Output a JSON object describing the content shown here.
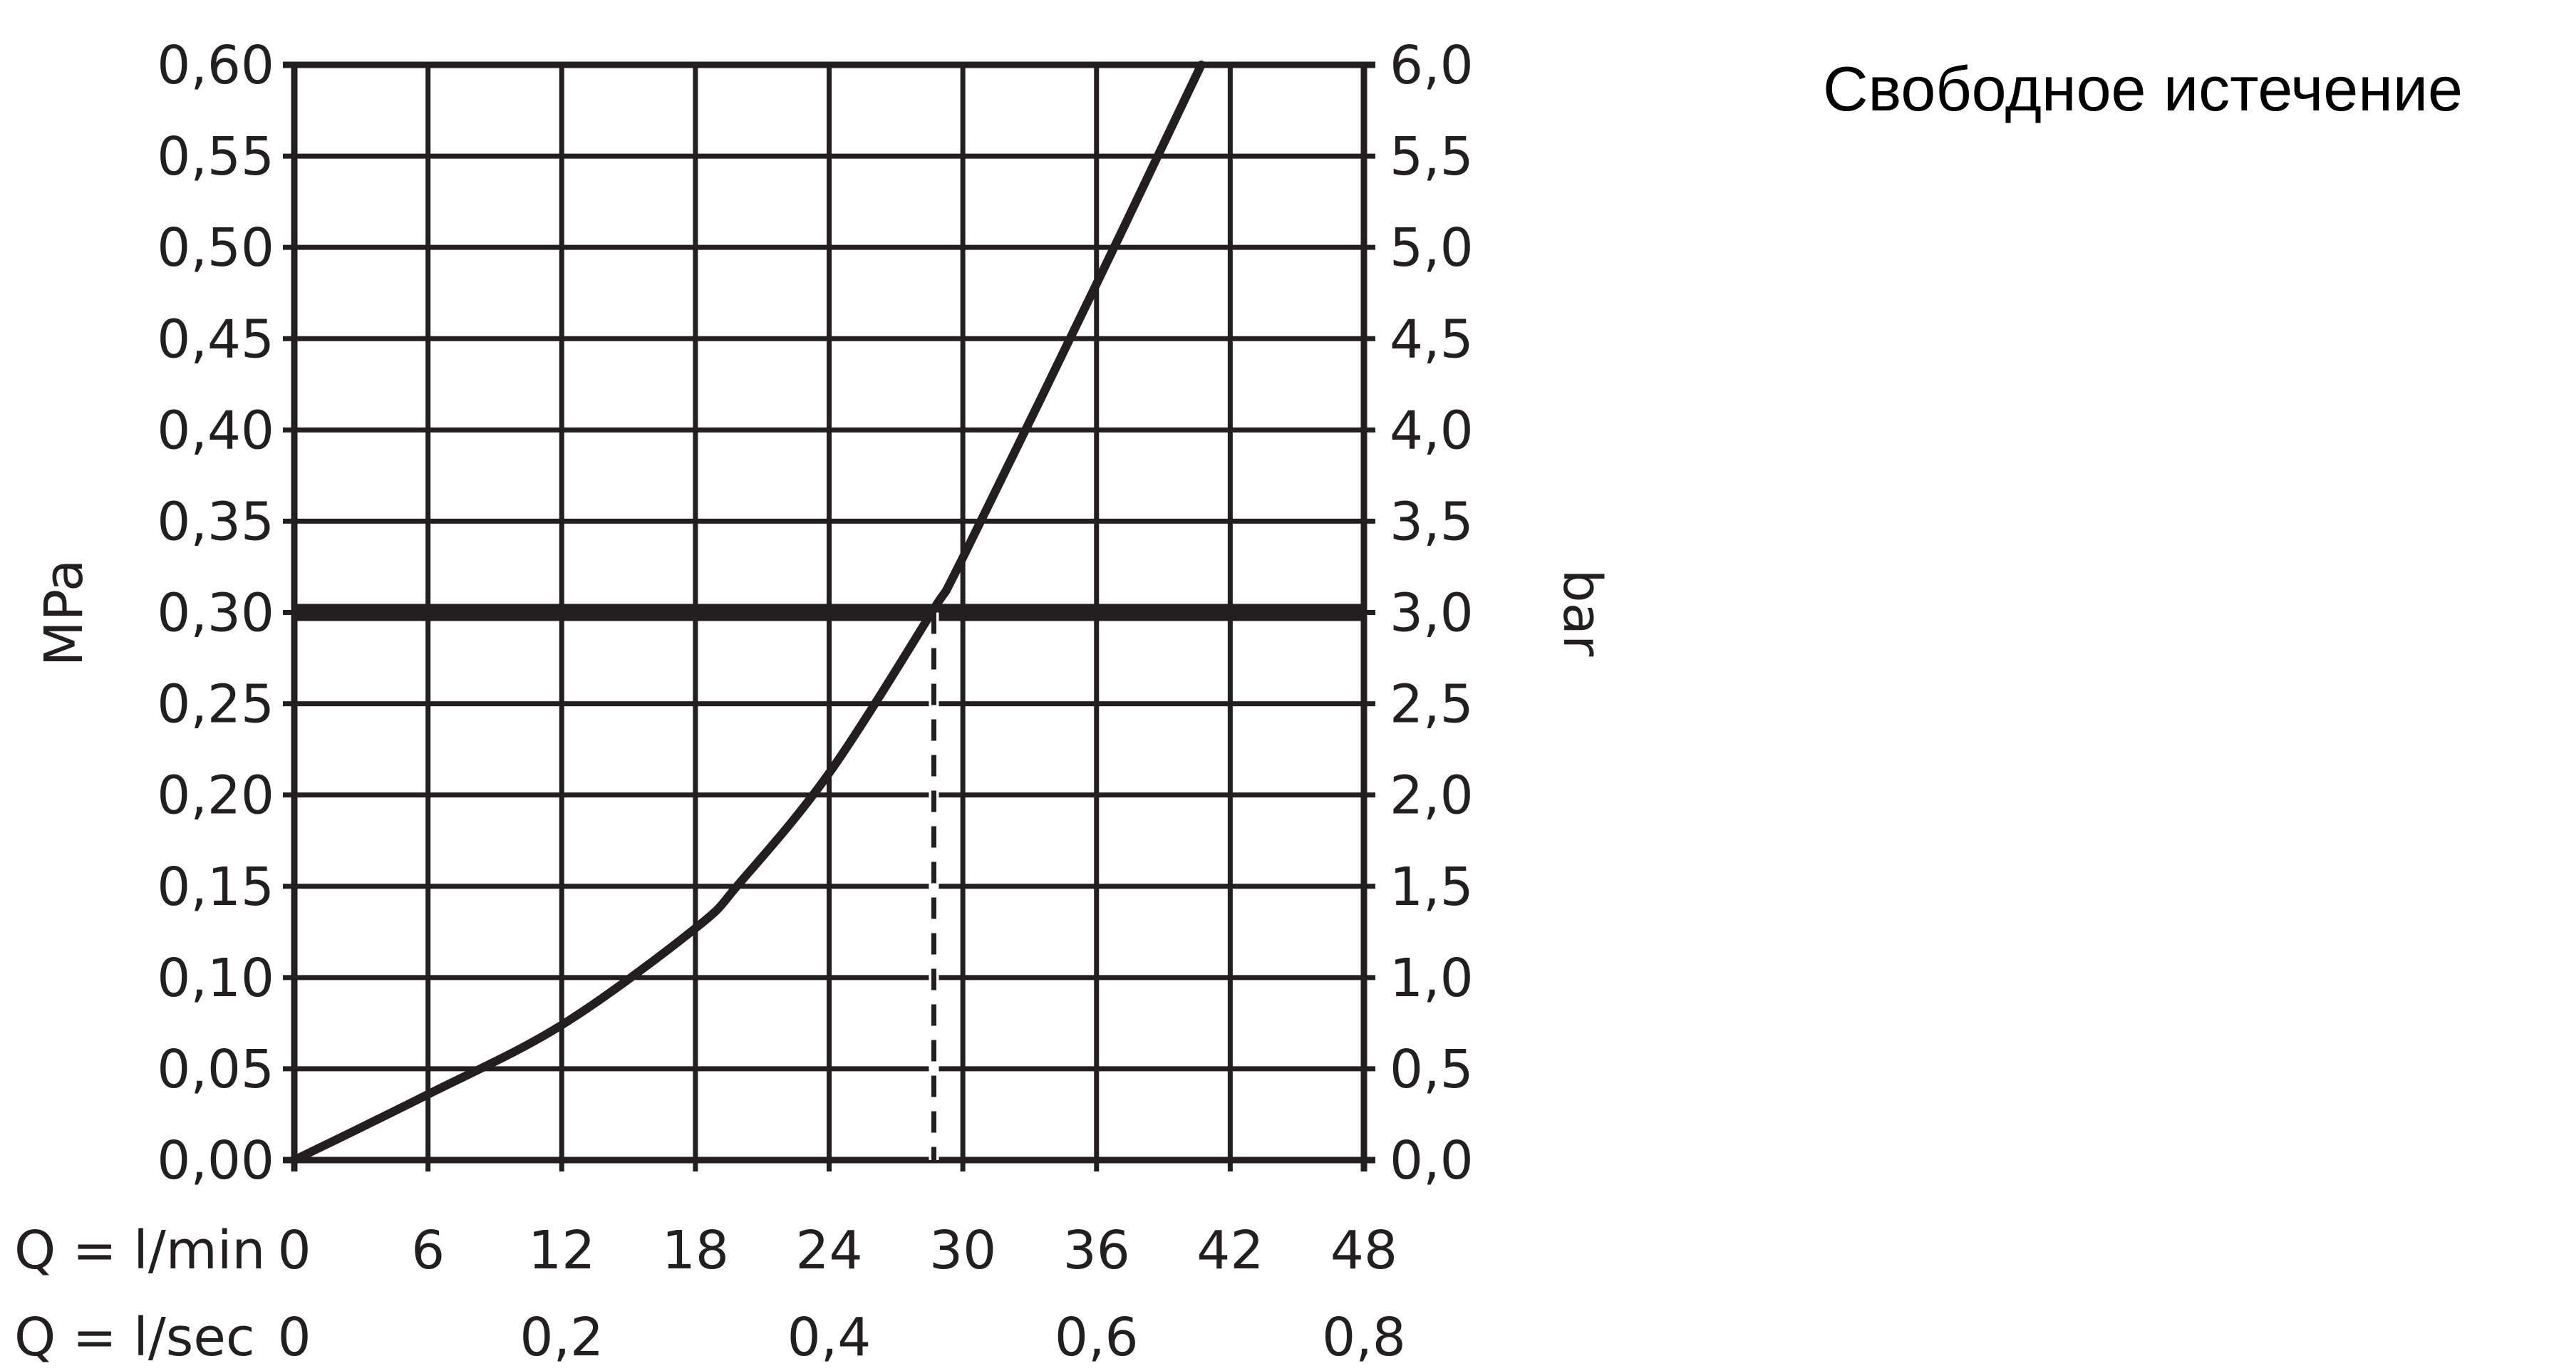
{
  "chart_data": {
    "type": "line",
    "title": "Свободное истечение",
    "xlabel_rows": [
      "Q = l/min",
      "Q = l/sec"
    ],
    "ylabel_left": "MPa",
    "ylabel_right": "bar",
    "xlim": [
      0,
      48
    ],
    "ylim": [
      0,
      0.6
    ],
    "grid": true,
    "x_ticks_lmin": [
      "0",
      "6",
      "12",
      "18",
      "24",
      "30",
      "36",
      "42",
      "48"
    ],
    "x_ticks_lsec": [
      {
        "v": 0,
        "label": "0"
      },
      {
        "v": 12,
        "label": "0,2"
      },
      {
        "v": 24,
        "label": "0,4"
      },
      {
        "v": 36,
        "label": "0,6"
      },
      {
        "v": 48,
        "label": "0,8"
      }
    ],
    "y_ticks_left": [
      "0,00",
      "0,05",
      "0,10",
      "0,15",
      "0,20",
      "0,25",
      "0,30",
      "0,35",
      "0,40",
      "0,45",
      "0,50",
      "0,55",
      "0,60"
    ],
    "y_ticks_right": [
      "0,0",
      "0,5",
      "1,0",
      "1,5",
      "2,0",
      "2,5",
      "3,0",
      "3,5",
      "4,0",
      "4,5",
      "5,0",
      "5,5",
      "6,0"
    ],
    "series": [
      {
        "x": [
          0,
          6,
          12,
          18,
          20,
          24,
          28.6,
          30,
          36,
          40.7
        ],
        "y": [
          0,
          0.036,
          0.074,
          0.127,
          0.152,
          0.212,
          0.3,
          0.33,
          0.48,
          0.6
        ]
      }
    ],
    "reference_line_y": 0.3,
    "reference_x": 28.7,
    "color": "#231f20"
  }
}
